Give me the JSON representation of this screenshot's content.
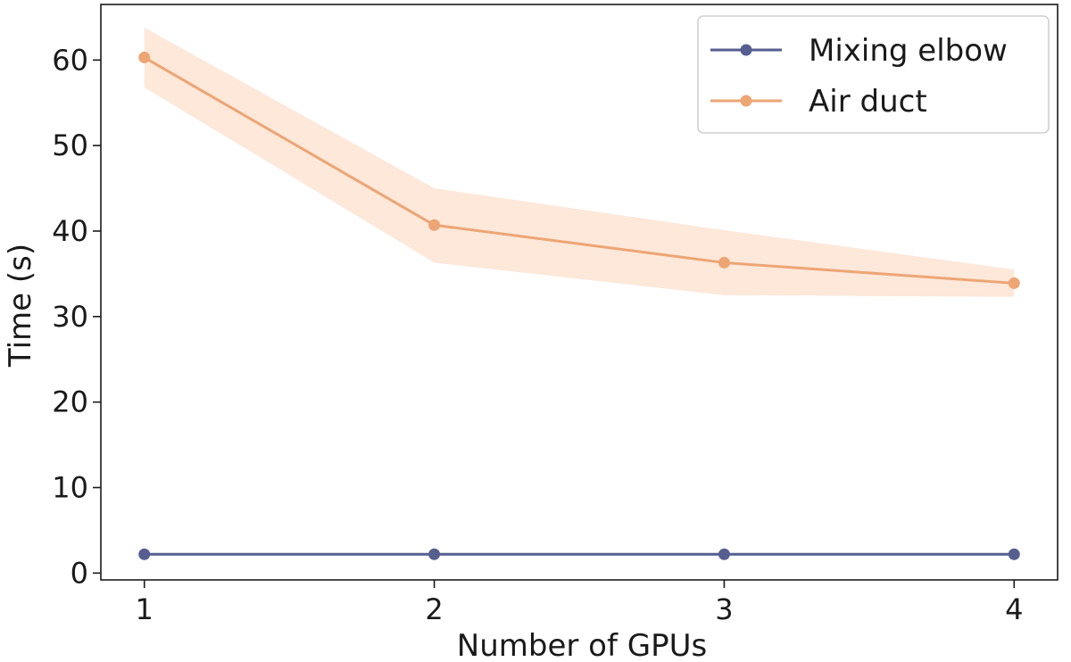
{
  "chart_data": {
    "type": "line",
    "xlabel": "Number of GPUs",
    "ylabel": "Time (s)",
    "x": [
      1,
      2,
      3,
      4
    ],
    "xticks": [
      "1",
      "2",
      "3",
      "4"
    ],
    "yticks": [
      "0",
      "10",
      "20",
      "30",
      "40",
      "50",
      "60"
    ],
    "xlim": [
      0.85,
      4.15
    ],
    "ylim": [
      -0.8,
      66.5
    ],
    "grid": false,
    "legend_position": "top-right",
    "series": [
      {
        "name": "Mixing elbow",
        "values": [
          2.2,
          2.2,
          2.2,
          2.2
        ],
        "band_upper": [
          2.2,
          2.2,
          2.2,
          2.2
        ],
        "band_lower": [
          2.2,
          2.2,
          2.2,
          2.2
        ],
        "color": "#555e8f",
        "band_color": "#c9cce0"
      },
      {
        "name": "Air duct",
        "values": [
          60.3,
          40.7,
          36.3,
          33.9
        ],
        "band_upper": [
          63.8,
          45.0,
          40.1,
          35.5
        ],
        "band_lower": [
          56.8,
          36.3,
          32.5,
          32.3
        ],
        "color": "#eda574",
        "band_color": "#fde8da"
      }
    ]
  }
}
